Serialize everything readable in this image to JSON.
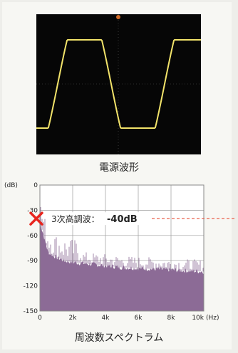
{
  "colors": {
    "waveform": "#f2e36a",
    "scope_bg": "#060606",
    "spectrum_fill": "#8c6b96",
    "marker": "#e8251e",
    "dash_line": "#e8503a"
  },
  "scope": {
    "caption": "電源波形"
  },
  "chart_data": {
    "type": "area",
    "title": "",
    "ylabel": "(dB)",
    "xlabel": "",
    "xunit": "(Hz)",
    "xlim": [
      0,
      10000
    ],
    "ylim": [
      -150,
      0
    ],
    "xtick_labels": [
      "0",
      "2k",
      "4k",
      "6k",
      "8k",
      "10k"
    ],
    "ytick_labels": [
      "0",
      "-30",
      "-60",
      "-90",
      "-120",
      "-150"
    ],
    "grid": true,
    "envelope": {
      "x": [
        0,
        200,
        500,
        1000,
        1500,
        2000,
        3000,
        4000,
        5000,
        6000,
        7000,
        8000,
        9000,
        10000
      ],
      "y": [
        -44,
        -58,
        -80,
        -86,
        -90,
        -92,
        -94,
        -96,
        -98,
        -99,
        -100,
        -101,
        -102,
        -103
      ]
    },
    "annotation": {
      "label": "3次高調波：",
      "value": "-40dB",
      "y": -40
    },
    "caption": "周波数スペクトラム"
  }
}
